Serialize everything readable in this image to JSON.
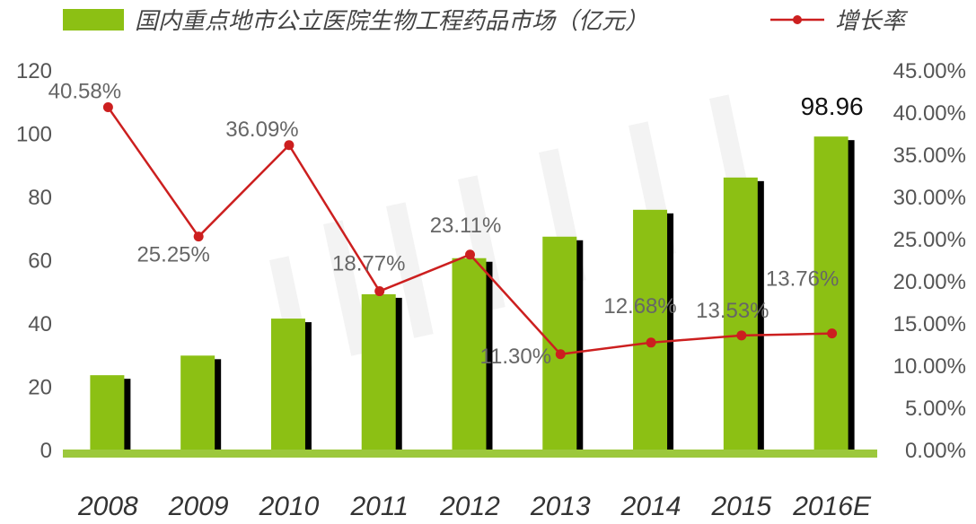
{
  "chart_data": {
    "type": "bar",
    "categories": [
      "2008",
      "2009",
      "2010",
      "2011",
      "2012",
      "2013",
      "2014",
      "2015",
      "2016E"
    ],
    "series": [
      {
        "name": "国内重点地市公立医院生物工程药品市场（亿元）",
        "type": "bar",
        "axis": "left",
        "color": "#8cc014",
        "shadow_color": "#000000",
        "values": [
          23.5,
          29.7,
          41.4,
          49.1,
          60.5,
          67.3,
          75.8,
          86.0,
          98.96
        ]
      },
      {
        "name": "增长率",
        "type": "line",
        "axis": "right",
        "color": "#cc1f1f",
        "values": [
          40.58,
          25.25,
          36.09,
          18.77,
          23.11,
          11.3,
          12.68,
          13.53,
          13.76
        ],
        "labels": [
          "40.58%",
          "25.25%",
          "36.09%",
          "18.77%",
          "23.11%",
          "11.30%",
          "12.68%",
          "13.53%",
          "13.76%"
        ]
      }
    ],
    "bar_value_labels": [
      {
        "category": "2016E",
        "text": "98.96"
      }
    ],
    "y_left": {
      "min": 0,
      "max": 120,
      "step": 20,
      "ticks": [
        "0",
        "20",
        "40",
        "60",
        "80",
        "100",
        "120"
      ]
    },
    "y_right": {
      "min": 0,
      "max": 45,
      "step": 5,
      "ticks": [
        "0.00%",
        "5.00%",
        "10.00%",
        "15.00%",
        "20.00%",
        "25.00%",
        "30.00%",
        "35.00%",
        "40.00%",
        "45.00%"
      ]
    },
    "legend": {
      "position": "top"
    },
    "grid": false,
    "baseline_color": "#9cc83c"
  }
}
